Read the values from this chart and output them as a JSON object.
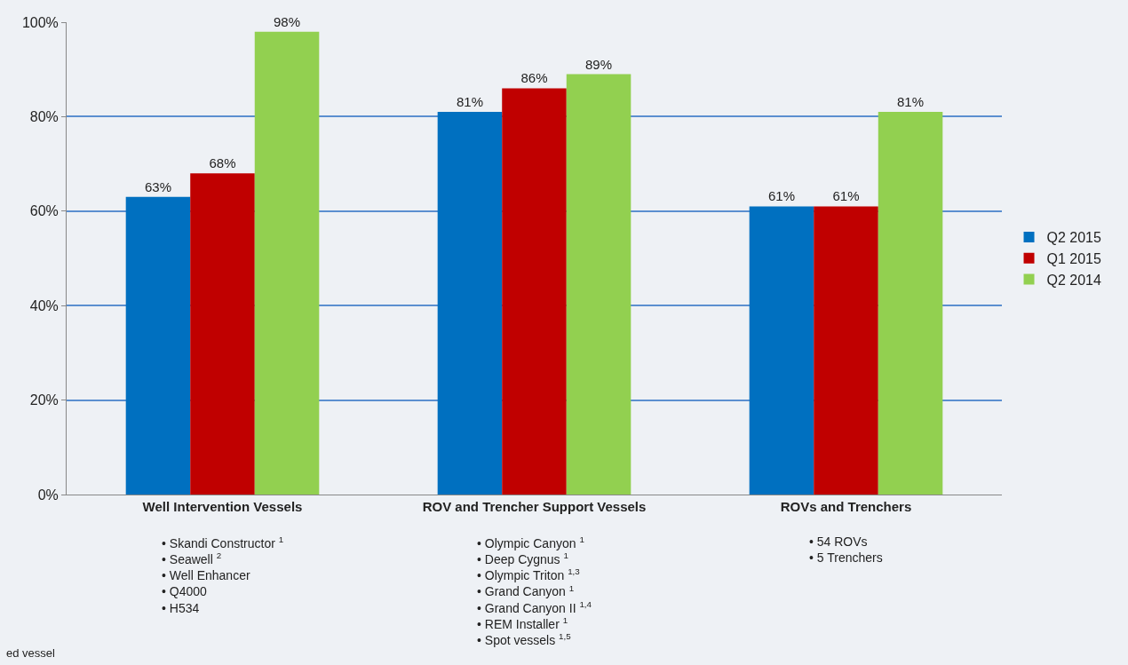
{
  "chart_data": {
    "type": "bar",
    "categories": [
      "Well Intervention Vessels",
      "ROV and Trencher Support Vessels",
      "ROVs and Trenchers"
    ],
    "series": [
      {
        "name": "Q2 2015",
        "color": "#0070c0",
        "values": [
          63,
          81,
          61
        ],
        "value_labels": [
          "63%",
          "81%",
          "61%"
        ]
      },
      {
        "name": "Q1 2015",
        "color": "#c00000",
        "values": [
          68,
          86,
          61
        ],
        "value_labels": [
          "68%",
          "86%",
          "61%"
        ]
      },
      {
        "name": "Q2 2014",
        "color": "#92d050",
        "values": [
          98,
          89,
          81
        ],
        "value_labels": [
          "98%",
          "89%",
          "81%"
        ]
      }
    ],
    "ylim": [
      0,
      100
    ],
    "yticks": [
      {
        "value": 0,
        "label": "0%"
      },
      {
        "value": 20,
        "label": "20%"
      },
      {
        "value": 40,
        "label": "40%"
      },
      {
        "value": 60,
        "label": "60%"
      },
      {
        "value": 80,
        "label": "80%"
      },
      {
        "value": 100,
        "label": "100%"
      }
    ],
    "grid": "y",
    "legend": "right",
    "annotations": [
      "• Skandi Constructor $^{1}$\n• Seawell $^{2}$\n• Well Enhancer\n• Q4000\n• H534",
      "• Olympic Canyon $^{1}$\n• Deep Cygnus $^{1}$\n• Olympic Triton $^{1,3}$\n• Grand Canyon $^{1}$\n• Grand Canyon II $^{1,4}$\n• REM Installer $^{1}$\n• Spot vessels $^{1,5}$",
      "• 54 ROVs\n• 5 Trenchers",
      "ed vessel"
    ]
  }
}
